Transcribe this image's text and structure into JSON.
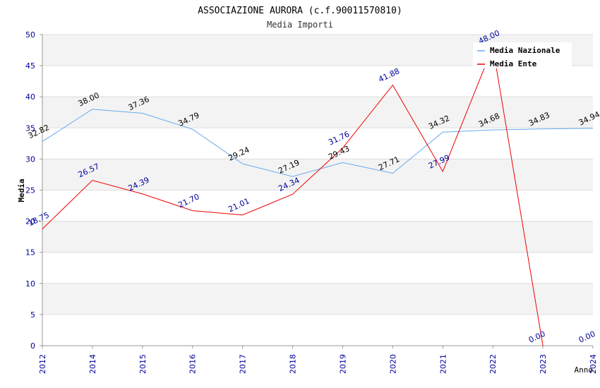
{
  "chart_data": {
    "type": "line",
    "title": "ASSOCIAZIONE AURORA (c.f.90011570810)",
    "subtitle": "Media Importi",
    "xlabel": "Anno",
    "ylabel": "Media",
    "ylim": [
      0,
      50
    ],
    "yticks": [
      "0",
      "5",
      "10",
      "15",
      "20",
      "25",
      "30",
      "35",
      "40",
      "45",
      "50"
    ],
    "categories": [
      "2012",
      "2014",
      "2015",
      "2016",
      "2017",
      "2018",
      "2019",
      "2020",
      "2021",
      "2022",
      "2023",
      "2024"
    ],
    "legend_position": "top-right",
    "series": [
      {
        "name": "Media Nazionale",
        "color": "#66aaee",
        "label_color": "#000000",
        "values": [
          32.82,
          38.0,
          37.36,
          34.79,
          29.24,
          27.19,
          29.43,
          27.71,
          34.32,
          34.68,
          34.83,
          34.94
        ],
        "labels": [
          "32.82",
          "38.00",
          "37.36",
          "34.79",
          "29.24",
          "27.19",
          "29.43",
          "27.71",
          "34.32",
          "34.68",
          "34.83",
          "34.94"
        ]
      },
      {
        "name": "Media Ente",
        "color": "#ee0000",
        "label_color": "#000099",
        "values": [
          18.75,
          26.57,
          24.39,
          21.7,
          21.01,
          24.34,
          31.76,
          41.88,
          27.99,
          48.0,
          0.0,
          0.0
        ],
        "labels": [
          "18.75",
          "26.57",
          "24.39",
          "21.70",
          "21.01",
          "24.34",
          "31.76",
          "41.88",
          "27.99",
          "48.00",
          "0.00",
          "0.00"
        ],
        "line_points": 11
      }
    ]
  }
}
